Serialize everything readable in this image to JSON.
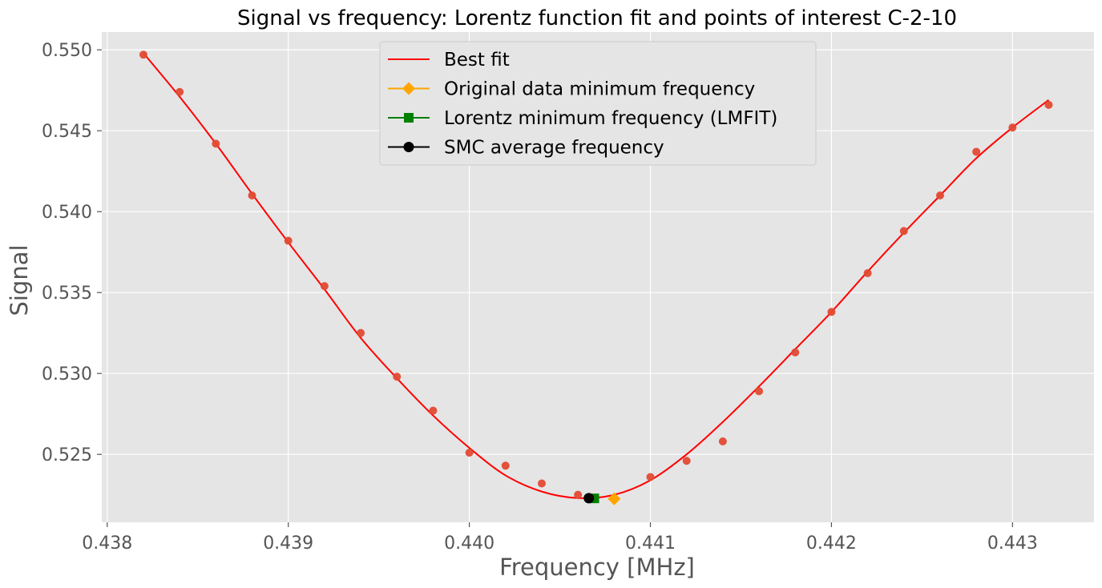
{
  "chart_data": {
    "type": "scatter",
    "title": "Signal vs frequency: Lorentz function fit and points of interest C-2-10",
    "xlabel": "Frequency [MHz]",
    "ylabel": "Signal",
    "xlim": [
      0.43797,
      0.44345
    ],
    "ylim": [
      0.5208,
      0.5511
    ],
    "xticks": [
      0.438,
      0.439,
      0.44,
      0.441,
      0.442,
      0.443
    ],
    "xtick_labels": [
      "0.438",
      "0.439",
      "0.440",
      "0.441",
      "0.442",
      "0.443"
    ],
    "yticks": [
      0.525,
      0.53,
      0.535,
      0.54,
      0.545,
      0.55
    ],
    "ytick_labels": [
      "0.525",
      "0.530",
      "0.535",
      "0.540",
      "0.545",
      "0.550"
    ],
    "grid": true,
    "legend_position": "top-center",
    "colors": {
      "background": "#e5e5e5",
      "grid": "#ffffff",
      "data_points": "#e24a33",
      "fit_line": "#ff0000",
      "original_min": "#ffa500",
      "lorentz_min": "#008000",
      "smc_avg": "#000000"
    },
    "data_points": {
      "x": [
        0.4382,
        0.4384,
        0.4386,
        0.4388,
        0.439,
        0.4392,
        0.4394,
        0.4396,
        0.4398,
        0.44,
        0.4402,
        0.4404,
        0.4406,
        0.441,
        0.4412,
        0.4414,
        0.4416,
        0.4418,
        0.442,
        0.4422,
        0.4424,
        0.4426,
        0.4428,
        0.443,
        0.4432
      ],
      "y": [
        0.5497,
        0.5474,
        0.5442,
        0.541,
        0.5382,
        0.5354,
        0.5325,
        0.5298,
        0.5277,
        0.5251,
        0.5243,
        0.5232,
        0.5225,
        0.5236,
        0.5246,
        0.5258,
        0.5289,
        0.5313,
        0.5338,
        0.5362,
        0.5388,
        0.541,
        0.5437,
        0.5452,
        0.5466
      ]
    },
    "series": [
      {
        "name": "Best fit",
        "kind": "line",
        "color": "#ff0000"
      },
      {
        "name": "Original data minimum frequency",
        "kind": "diamond",
        "color": "#ffa500",
        "x": [
          0.4408
        ],
        "y": [
          0.52225
        ]
      },
      {
        "name": "Lorentz minimum frequency (LMFIT)",
        "kind": "square",
        "color": "#008000",
        "x": [
          0.44069
        ],
        "y": [
          0.52228
        ]
      },
      {
        "name": "SMC average frequency",
        "kind": "circle",
        "color": "#000000",
        "x": [
          0.44066
        ],
        "y": [
          0.52229
        ]
      }
    ],
    "fit_curve": {
      "x": [
        0.4382,
        0.4384,
        0.4386,
        0.4388,
        0.439,
        0.4392,
        0.4394,
        0.4396,
        0.4398,
        0.44,
        0.4402,
        0.4404,
        0.4406,
        0.4408,
        0.441,
        0.4412,
        0.4414,
        0.4416,
        0.4418,
        0.442,
        0.4422,
        0.4424,
        0.4426,
        0.4428,
        0.443,
        0.4432
      ],
      "y": [
        0.5498,
        0.5471,
        0.5442,
        0.5411,
        0.5381,
        0.5352,
        0.5322,
        0.5297,
        0.5274,
        0.5254,
        0.5237,
        0.5227,
        0.5223,
        0.5225,
        0.5234,
        0.525,
        0.527,
        0.5292,
        0.5315,
        0.5338,
        0.5363,
        0.5387,
        0.541,
        0.5433,
        0.5452,
        0.5469
      ]
    }
  }
}
